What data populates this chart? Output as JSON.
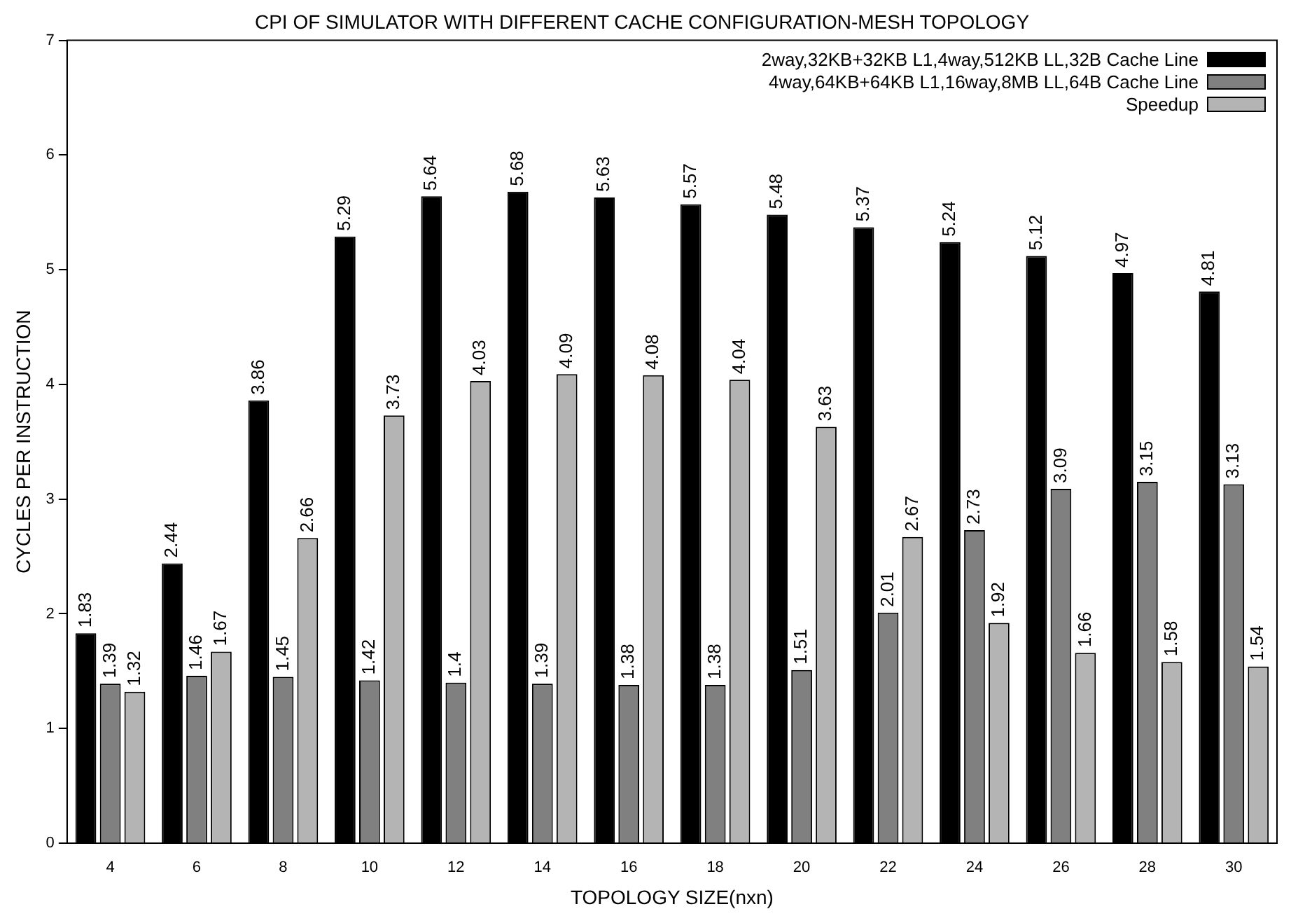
{
  "chart_data": {
    "type": "bar",
    "title": "CPI OF SIMULATOR WITH DIFFERENT CACHE CONFIGURATION-MESH TOPOLOGY",
    "xlabel": "TOPOLOGY SIZE(nxn)",
    "ylabel": "CYCLES PER INSTRUCTION",
    "categories": [
      "4",
      "6",
      "8",
      "10",
      "12",
      "14",
      "16",
      "18",
      "20",
      "22",
      "24",
      "26",
      "28",
      "30"
    ],
    "series": [
      {
        "name": "2way,32KB+32KB L1,4way,512KB LL,32B Cache Line",
        "color": "#000000",
        "values": [
          1.83,
          2.44,
          3.86,
          5.29,
          5.64,
          5.68,
          5.63,
          5.57,
          5.48,
          5.37,
          5.24,
          5.12,
          4.97,
          4.81
        ]
      },
      {
        "name": "4way,64KB+64KB L1,16way,8MB LL,64B Cache Line",
        "color": "#808080",
        "values": [
          1.39,
          1.46,
          1.45,
          1.42,
          1.4,
          1.39,
          1.38,
          1.38,
          1.51,
          2.01,
          2.73,
          3.09,
          3.15,
          3.13
        ]
      },
      {
        "name": "Speedup",
        "color": "#b4b4b4",
        "values": [
          1.32,
          1.67,
          2.66,
          3.73,
          4.03,
          4.09,
          4.08,
          4.04,
          3.63,
          2.67,
          1.92,
          1.66,
          1.58,
          1.54
        ]
      }
    ],
    "ylim": [
      0,
      7
    ],
    "yticks": [
      0,
      1,
      2,
      3,
      4,
      5,
      6,
      7
    ],
    "grid": false,
    "legend": "top right",
    "data_labels": true
  }
}
